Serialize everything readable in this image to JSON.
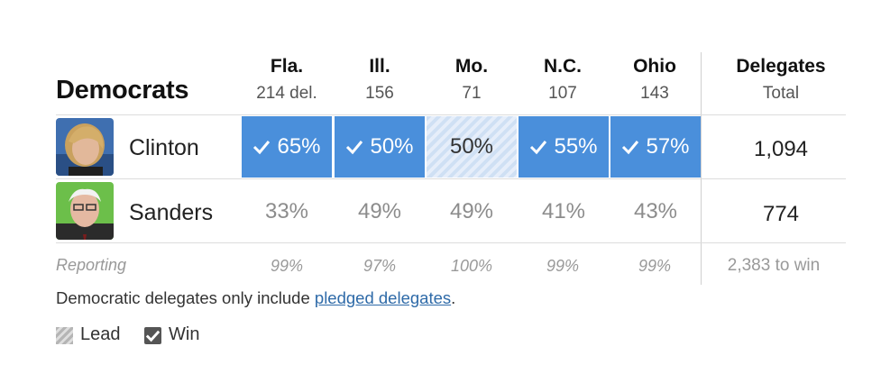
{
  "party": "Democrats",
  "states": [
    {
      "name": "Fla.",
      "delegates": "214 del."
    },
    {
      "name": "Ill.",
      "delegates": "156"
    },
    {
      "name": "Mo.",
      "delegates": "71"
    },
    {
      "name": "N.C.",
      "delegates": "107"
    },
    {
      "name": "Ohio",
      "delegates": "143"
    }
  ],
  "delegates_header": {
    "title": "Delegates",
    "subtitle": "Total"
  },
  "candidates": [
    {
      "name": "Clinton",
      "results": [
        {
          "value": "65%",
          "status": "win"
        },
        {
          "value": "50%",
          "status": "win"
        },
        {
          "value": "50%",
          "status": "lead"
        },
        {
          "value": "55%",
          "status": "win"
        },
        {
          "value": "57%",
          "status": "win"
        }
      ],
      "total": "1,094"
    },
    {
      "name": "Sanders",
      "results": [
        {
          "value": "33%",
          "status": "none"
        },
        {
          "value": "49%",
          "status": "none"
        },
        {
          "value": "49%",
          "status": "none"
        },
        {
          "value": "41%",
          "status": "none"
        },
        {
          "value": "43%",
          "status": "none"
        }
      ],
      "total": "774"
    }
  ],
  "reporting": {
    "label": "Reporting",
    "values": [
      "99%",
      "97%",
      "100%",
      "99%",
      "99%"
    ],
    "to_win": "2,383 to win"
  },
  "note": {
    "prefix": "Democratic delegates only include ",
    "link": "pledged delegates",
    "suffix": "."
  },
  "legend": {
    "lead": "Lead",
    "win": "Win"
  },
  "colors": {
    "win": "#4a8fdb",
    "lead": "#cfe0f4",
    "muted": "#8c8c8c"
  }
}
